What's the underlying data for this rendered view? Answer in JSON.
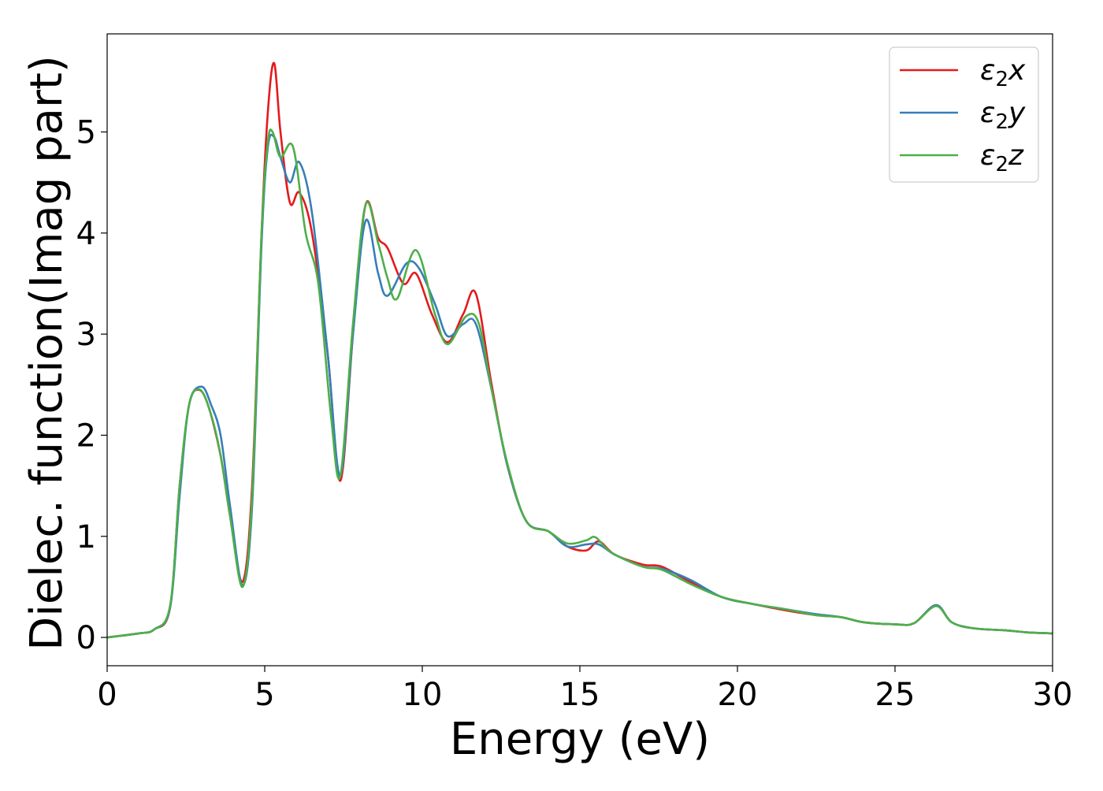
{
  "chart_data": {
    "type": "line",
    "title": "",
    "xlabel": "Energy (eV)",
    "ylabel": "Dielec. function(Imag part)",
    "xlim": [
      0,
      30
    ],
    "ylim": [
      -0.28,
      5.97
    ],
    "x_ticks": [
      0,
      5,
      10,
      15,
      20,
      25,
      30
    ],
    "y_ticks": [
      0,
      1,
      2,
      3,
      4,
      5
    ],
    "grid": false,
    "legend_position": "top-right",
    "series": [
      {
        "name": "ε2x",
        "legend_base": "ε",
        "legend_sub": "2",
        "legend_var": "x",
        "color": "#e41a1c",
        "x": [
          0,
          1,
          1.5,
          2.0,
          2.3,
          2.6,
          2.9,
          3.2,
          3.6,
          3.9,
          4.3,
          4.6,
          4.9,
          5.1,
          5.3,
          5.5,
          5.8,
          6.1,
          6.5,
          7.0,
          7.4,
          7.8,
          8.2,
          8.6,
          8.9,
          9.4,
          9.8,
          10.3,
          10.8,
          11.3,
          11.7,
          12.2,
          12.7,
          13.3,
          14.0,
          14.6,
          15.2,
          15.6,
          16.1,
          17.0,
          17.6,
          18.5,
          19.5,
          20.5,
          21.5,
          22.5,
          23.3,
          24.0,
          25.0,
          25.6,
          26.3,
          26.8,
          27.5,
          28.5,
          29.2,
          30
        ],
        "values": [
          0,
          0.04,
          0.08,
          0.3,
          1.5,
          2.3,
          2.45,
          2.3,
          1.8,
          1.2,
          0.55,
          1.5,
          4.0,
          5.2,
          5.68,
          5.0,
          4.3,
          4.4,
          4.0,
          2.8,
          1.55,
          3.0,
          4.28,
          3.95,
          3.85,
          3.5,
          3.6,
          3.2,
          2.92,
          3.2,
          3.4,
          2.5,
          1.7,
          1.15,
          1.05,
          0.9,
          0.86,
          0.95,
          0.82,
          0.72,
          0.7,
          0.55,
          0.4,
          0.33,
          0.27,
          0.22,
          0.2,
          0.15,
          0.13,
          0.14,
          0.32,
          0.15,
          0.09,
          0.07,
          0.05,
          0.04
        ]
      },
      {
        "name": "ε2y",
        "legend_base": "ε",
        "legend_sub": "2",
        "legend_var": "y",
        "color": "#377eb8",
        "x": [
          0,
          1,
          1.5,
          2.0,
          2.3,
          2.6,
          3.0,
          3.3,
          3.6,
          3.9,
          4.3,
          4.6,
          4.9,
          5.1,
          5.3,
          5.5,
          5.8,
          6.1,
          6.5,
          7.0,
          7.4,
          7.8,
          8.2,
          8.6,
          8.9,
          9.5,
          9.9,
          10.4,
          10.8,
          11.3,
          11.7,
          12.2,
          12.7,
          13.3,
          14.0,
          14.6,
          15.2,
          15.6,
          16.1,
          17.0,
          17.6,
          18.5,
          19.5,
          20.5,
          21.5,
          22.5,
          23.3,
          24.0,
          25.0,
          25.6,
          26.3,
          26.8,
          27.5,
          28.5,
          29.2,
          30
        ],
        "values": [
          0,
          0.04,
          0.08,
          0.3,
          1.4,
          2.3,
          2.48,
          2.3,
          2.0,
          1.3,
          0.52,
          1.3,
          3.9,
          4.85,
          4.95,
          4.75,
          4.5,
          4.7,
          4.2,
          2.8,
          1.6,
          3.0,
          4.12,
          3.6,
          3.38,
          3.7,
          3.65,
          3.3,
          2.98,
          3.1,
          3.1,
          2.45,
          1.7,
          1.15,
          1.05,
          0.9,
          0.92,
          0.92,
          0.82,
          0.7,
          0.68,
          0.57,
          0.4,
          0.33,
          0.28,
          0.23,
          0.2,
          0.15,
          0.13,
          0.14,
          0.32,
          0.15,
          0.09,
          0.07,
          0.05,
          0.04
        ]
      },
      {
        "name": "ε2z",
        "legend_base": "ε",
        "legend_sub": "2",
        "legend_var": "z",
        "color": "#4daf4a",
        "x": [
          0,
          1,
          1.5,
          2.0,
          2.3,
          2.6,
          2.95,
          3.3,
          3.6,
          3.9,
          4.3,
          4.6,
          4.9,
          5.1,
          5.25,
          5.5,
          5.9,
          6.3,
          6.7,
          7.1,
          7.4,
          7.8,
          8.2,
          8.6,
          8.9,
          9.2,
          9.8,
          10.4,
          10.8,
          11.4,
          11.8,
          12.2,
          12.7,
          13.3,
          14.0,
          14.6,
          15.2,
          15.5,
          16.0,
          17.0,
          17.6,
          18.5,
          19.5,
          20.5,
          21.5,
          22.5,
          23.3,
          24.0,
          25.0,
          25.6,
          26.3,
          26.8,
          27.5,
          28.5,
          29.2,
          30
        ],
        "values": [
          0,
          0.04,
          0.08,
          0.32,
          1.5,
          2.3,
          2.45,
          2.2,
          1.8,
          1.2,
          0.5,
          1.4,
          4.0,
          4.9,
          5.0,
          4.75,
          4.85,
          4.0,
          3.5,
          2.2,
          1.6,
          3.1,
          4.28,
          3.9,
          3.55,
          3.35,
          3.83,
          3.2,
          2.9,
          3.18,
          3.1,
          2.45,
          1.72,
          1.15,
          1.05,
          0.93,
          0.96,
          0.99,
          0.84,
          0.7,
          0.67,
          0.53,
          0.4,
          0.33,
          0.28,
          0.22,
          0.2,
          0.15,
          0.13,
          0.14,
          0.31,
          0.15,
          0.09,
          0.07,
          0.05,
          0.04
        ]
      }
    ]
  }
}
